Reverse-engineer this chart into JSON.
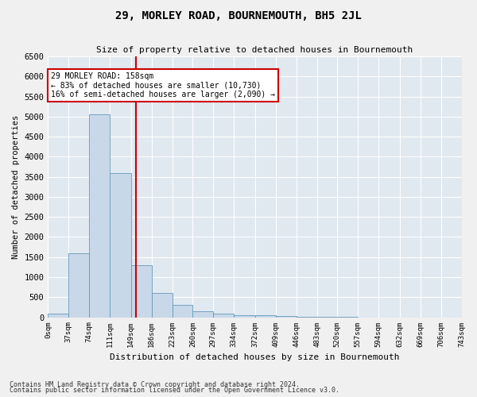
{
  "title": "29, MORLEY ROAD, BOURNEMOUTH, BH5 2JL",
  "subtitle": "Size of property relative to detached houses in Bournemouth",
  "xlabel": "Distribution of detached houses by size in Bournemouth",
  "ylabel": "Number of detached properties",
  "bar_color": "#c8d8e8",
  "bar_edge_color": "#6699bb",
  "background_color": "#e0e8f0",
  "grid_color": "#ffffff",
  "bin_edges": [
    0,
    37,
    74,
    111,
    149,
    186,
    223,
    260,
    297,
    334,
    372,
    409,
    446,
    483,
    520,
    557,
    594,
    632,
    669,
    706,
    743
  ],
  "bar_heights": [
    100,
    1600,
    5050,
    3600,
    1300,
    600,
    300,
    150,
    100,
    50,
    50,
    30,
    10,
    5,
    5,
    0,
    0,
    0,
    0,
    0
  ],
  "tick_labels": [
    "0sqm",
    "37sqm",
    "74sqm",
    "111sqm",
    "149sqm",
    "186sqm",
    "223sqm",
    "260sqm",
    "297sqm",
    "334sqm",
    "372sqm",
    "409sqm",
    "446sqm",
    "483sqm",
    "520sqm",
    "557sqm",
    "594sqm",
    "632sqm",
    "669sqm",
    "706sqm",
    "743sqm"
  ],
  "ylim": [
    0,
    6500
  ],
  "yticks": [
    0,
    500,
    1000,
    1500,
    2000,
    2500,
    3000,
    3500,
    4000,
    4500,
    5000,
    5500,
    6000,
    6500
  ],
  "property_size": 158,
  "red_line_color": "#cc0000",
  "annotation_text": "29 MORLEY ROAD: 158sqm\n← 83% of detached houses are smaller (10,730)\n16% of semi-detached houses are larger (2,090) →",
  "annotation_box_color": "#ffffff",
  "annotation_box_edge": "#cc0000",
  "fig_bg_color": "#f0f0f0",
  "footnote1": "Contains HM Land Registry data © Crown copyright and database right 2024.",
  "footnote2": "Contains public sector information licensed under the Open Government Licence v3.0."
}
